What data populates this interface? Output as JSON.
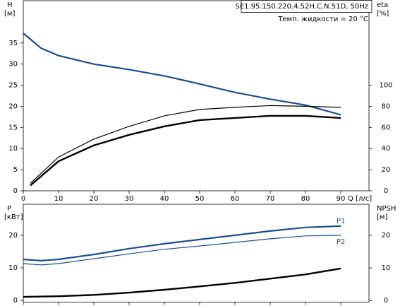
{
  "chart_data": [
    {
      "type": "line",
      "title": "SE1.95.150.220.4.52H.C.N.51D, 50Hz",
      "subtitle": "Темп. жидкости = 20 °C",
      "ylabel": "H",
      "yunit": "[м]",
      "y2label": "eta",
      "y2unit": "[%]",
      "xlabel": "Q [л/с]",
      "xlim": [
        0,
        98
      ],
      "xticks": [
        0,
        10,
        20,
        30,
        40,
        50,
        60,
        70,
        80,
        90
      ],
      "ylim": [
        0,
        45
      ],
      "yticks": [
        0,
        5,
        10,
        15,
        20,
        25,
        30,
        35
      ],
      "y2lim": [
        0,
        180
      ],
      "y2ticks": [
        0,
        20,
        40,
        60,
        80,
        100
      ],
      "series": [
        {
          "color": "#1f4e8c",
          "width": 2.2,
          "x": [
            0,
            5,
            10,
            20,
            30,
            40,
            50,
            60,
            70,
            80,
            90
          ],
          "values": [
            37.3,
            33.8,
            32,
            30,
            28.7,
            27.2,
            25.3,
            23.3,
            21.7,
            20.3,
            18
          ]
        },
        {
          "color": "#000000",
          "width": 1.2,
          "axis": "y2",
          "x": [
            2,
            10,
            20,
            30,
            40,
            50,
            60,
            70,
            80,
            90
          ],
          "values": [
            7,
            32,
            49,
            61,
            71,
            77,
            79,
            80.7,
            80,
            79
          ]
        },
        {
          "color": "#000000",
          "width": 2.4,
          "axis": "y2",
          "x": [
            2,
            10,
            20,
            30,
            40,
            50,
            60,
            70,
            80,
            90
          ],
          "values": [
            5,
            28,
            43,
            53,
            61,
            67,
            69,
            71,
            71,
            69
          ]
        }
      ]
    },
    {
      "type": "line",
      "ylabel": "P",
      "yunit": "[кВт]",
      "y2label": "NPSH",
      "y2unit": "[м]",
      "xlim": [
        0,
        98
      ],
      "xticks": [
        0,
        10,
        20,
        30,
        40,
        50,
        60,
        70,
        80,
        90
      ],
      "xtick_labels": false,
      "ylim": [
        -0.5,
        29.5
      ],
      "yticks": [
        0,
        10,
        20
      ],
      "y2lim": [
        -0.5,
        29.5
      ],
      "y2ticks": [
        0,
        10,
        20
      ],
      "series": [
        {
          "name": "P1",
          "color": "#1f4e8c",
          "width": 2.2,
          "x": [
            0,
            5,
            10,
            20,
            30,
            40,
            50,
            60,
            70,
            80,
            90
          ],
          "values": [
            12.6,
            12.2,
            12.6,
            14.1,
            15.9,
            17.4,
            18.7,
            20,
            21.3,
            22.4,
            22.8
          ]
        },
        {
          "name": "P2",
          "color": "#1f4e8c",
          "width": 1.2,
          "x": [
            0,
            5,
            10,
            20,
            30,
            40,
            50,
            60,
            70,
            80,
            90
          ],
          "values": [
            11.3,
            10.9,
            11.3,
            12.8,
            14.3,
            15.7,
            16.7,
            17.8,
            18.9,
            19.8,
            20
          ]
        },
        {
          "color": "#000000",
          "width": 2.4,
          "axis": "y2",
          "x": [
            0,
            10,
            20,
            30,
            40,
            50,
            60,
            70,
            80,
            90
          ],
          "values": [
            1.1,
            1.3,
            1.7,
            2.4,
            3.3,
            4.3,
            5.4,
            6.7,
            8,
            9.8
          ]
        }
      ]
    }
  ]
}
